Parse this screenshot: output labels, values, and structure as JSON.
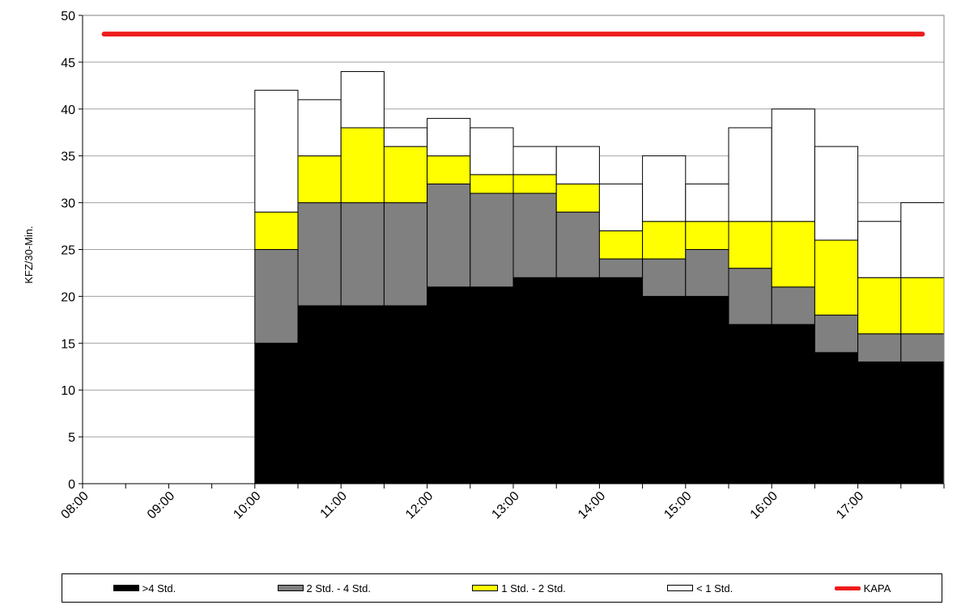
{
  "chart_data": {
    "type": "bar",
    "stacked": true,
    "ylabel": "KFZ/30-Min.",
    "ylim": [
      0,
      50
    ],
    "ytick_step": 5,
    "grid": true,
    "legend_position": "bottom",
    "x_tick_labels": [
      "08:00",
      "09:00",
      "10:00",
      "11:00",
      "12:00",
      "13:00",
      "14:00",
      "15:00",
      "16:00",
      "17:00"
    ],
    "slots": [
      "08:00",
      "08:30",
      "09:00",
      "09:30",
      "10:00",
      "10:30",
      "11:00",
      "11:30",
      "12:00",
      "12:30",
      "13:00",
      "13:30",
      "14:00",
      "14:30",
      "15:00",
      "15:30",
      "16:00",
      "16:30",
      "17:00",
      "17:30"
    ],
    "series": [
      {
        "name": ">4 Std.",
        "color": "#000000",
        "values": [
          0,
          0,
          0,
          0,
          15,
          19,
          19,
          19,
          21,
          21,
          22,
          22,
          22,
          20,
          20,
          17,
          17,
          14,
          13,
          13
        ]
      },
      {
        "name": "2 Std. - 4 Std.",
        "color": "#808080",
        "values": [
          0,
          0,
          0,
          0,
          10,
          11,
          11,
          11,
          11,
          10,
          9,
          7,
          2,
          4,
          5,
          6,
          4,
          4,
          3,
          3
        ]
      },
      {
        "name": "1 Std. - 2 Std.",
        "color": "#ffff00",
        "values": [
          0,
          0,
          0,
          0,
          4,
          5,
          8,
          6,
          3,
          2,
          2,
          3,
          3,
          4,
          3,
          5,
          7,
          8,
          6,
          6
        ]
      },
      {
        "name": "< 1 Std.",
        "color": "#ffffff",
        "values": [
          0,
          0,
          0,
          0,
          13,
          6,
          6,
          2,
          4,
          5,
          3,
          4,
          5,
          7,
          4,
          10,
          12,
          10,
          6,
          8
        ]
      }
    ],
    "line": {
      "name": "KAPA",
      "color": "#ee1c1c",
      "value": 48
    }
  }
}
